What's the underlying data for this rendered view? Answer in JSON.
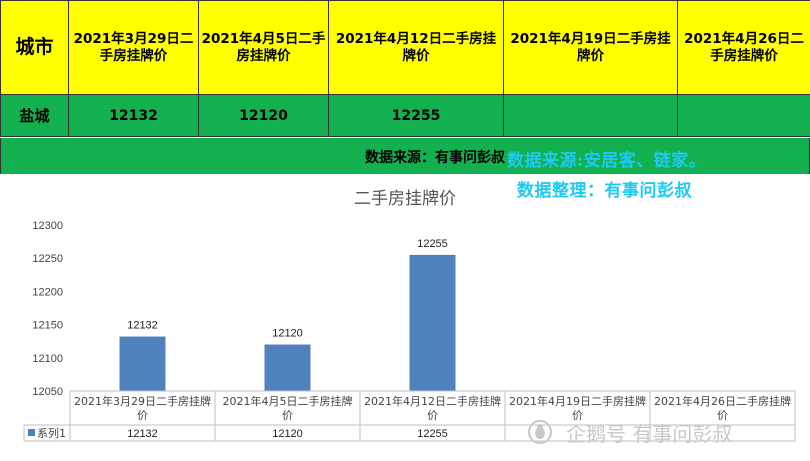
{
  "table": {
    "header_city": "城市",
    "headers": [
      "2021年3月29日二手房挂牌价",
      "2021年4月5日二手房挂牌价",
      "2021年4月12日二手房挂牌价",
      "2021年4月19日二手房挂牌价",
      "2021年4月26日二手房挂牌价"
    ],
    "city": "盐城",
    "values": [
      "12132",
      "12120",
      "12255",
      "",
      ""
    ]
  },
  "source_line": "数据来源：有事问彭叔",
  "overlay": {
    "line1": "数据来源:安居客、链家。",
    "line2": "数据整理：有事问彭叔"
  },
  "watermark": "企鹅号 有事问彭叔",
  "colors": {
    "header_bg": "#ffff00",
    "row_bg": "#12b04e",
    "bar": "#4f81bd",
    "overlay_text": "#20c9f0"
  },
  "chart_data": {
    "type": "bar",
    "title": "二手房挂牌价",
    "categories": [
      "2021年3月29日二手房挂牌价",
      "2021年4月5日二手房挂牌价",
      "2021年4月12日二手房挂牌价",
      "2021年4月19日二手房挂牌价",
      "2021年4月26日二手房挂牌价"
    ],
    "series": [
      {
        "name": "系列1",
        "values": [
          12132,
          12120,
          12255,
          null,
          null
        ]
      }
    ],
    "value_labels": [
      "12132",
      "12120",
      "12255",
      "",
      ""
    ],
    "ylim": [
      12050,
      12300
    ],
    "yticks": [
      12050,
      12100,
      12150,
      12200,
      12250,
      12300
    ],
    "grid": false,
    "data_table": true
  }
}
